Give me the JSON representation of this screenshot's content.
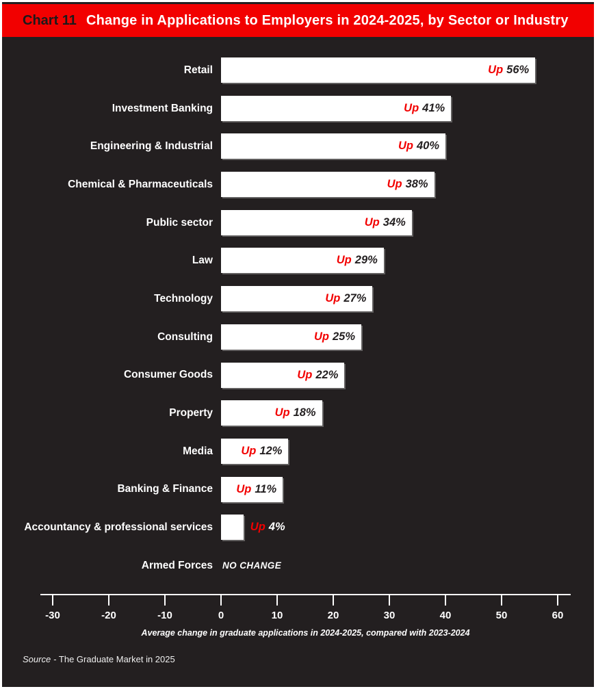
{
  "header": {
    "chart_label": "Chart 11",
    "title": "Change in Applications to Employers in 2024-2025, by Sector or Industry"
  },
  "chart_data": {
    "type": "bar",
    "orientation": "horizontal",
    "title": "Chart 11  Change in Applications to Employers in 2024-2025, by Sector or Industry",
    "xlabel": "Average change in graduate applications in 2024-2025, compared with 2023-2024",
    "xlim": [
      -30,
      60
    ],
    "xticks": [
      -30,
      -20,
      -10,
      0,
      10,
      20,
      30,
      40,
      50,
      60
    ],
    "grid": false,
    "categories": [
      "Retail",
      "Investment Banking",
      "Engineering & Industrial",
      "Chemical & Pharmaceuticals",
      "Public sector",
      "Law",
      "Technology",
      "Consulting",
      "Consumer Goods",
      "Property",
      "Media",
      "Banking & Finance",
      "Accountancy & professional services",
      "Armed Forces"
    ],
    "values": [
      56,
      41,
      40,
      38,
      34,
      29,
      27,
      25,
      22,
      18,
      12,
      11,
      4,
      0
    ],
    "bars": [
      {
        "label": "Retail",
        "value": 56,
        "prefix": "Up",
        "pct": "56%",
        "inside": true
      },
      {
        "label": "Investment Banking",
        "value": 41,
        "prefix": "Up",
        "pct": "41%",
        "inside": true
      },
      {
        "label": "Engineering & Industrial",
        "value": 40,
        "prefix": "Up",
        "pct": "40%",
        "inside": true
      },
      {
        "label": "Chemical & Pharmaceuticals",
        "value": 38,
        "prefix": "Up",
        "pct": "38%",
        "inside": true
      },
      {
        "label": "Public sector",
        "value": 34,
        "prefix": "Up",
        "pct": "34%",
        "inside": true
      },
      {
        "label": "Law",
        "value": 29,
        "prefix": "Up",
        "pct": "29%",
        "inside": true
      },
      {
        "label": "Technology",
        "value": 27,
        "prefix": "Up",
        "pct": "27%",
        "inside": true
      },
      {
        "label": "Consulting",
        "value": 25,
        "prefix": "Up",
        "pct": "25%",
        "inside": true
      },
      {
        "label": "Consumer Goods",
        "value": 22,
        "prefix": "Up",
        "pct": "22%",
        "inside": true
      },
      {
        "label": "Property",
        "value": 18,
        "prefix": "Up",
        "pct": "18%",
        "inside": true
      },
      {
        "label": "Media",
        "value": 12,
        "prefix": "Up",
        "pct": "12%",
        "inside": true
      },
      {
        "label": "Banking & Finance",
        "value": 11,
        "prefix": "Up",
        "pct": "11%",
        "inside": true
      },
      {
        "label": "Accountancy & professional services",
        "value": 4,
        "prefix": "Up",
        "pct": "4%",
        "inside": false
      },
      {
        "label": "Armed Forces",
        "value": 0,
        "note": "NO CHANGE"
      }
    ]
  },
  "footer": {
    "source_prefix": "Source",
    "source_text": "- The Graduate Market in 2025"
  },
  "colors": {
    "header_red": "#f20000",
    "up_red": "#ee1111",
    "background_dark": "#231f20",
    "bar_white": "#ffffff",
    "value_black": "#231f20",
    "text_white": "#ffffff"
  }
}
